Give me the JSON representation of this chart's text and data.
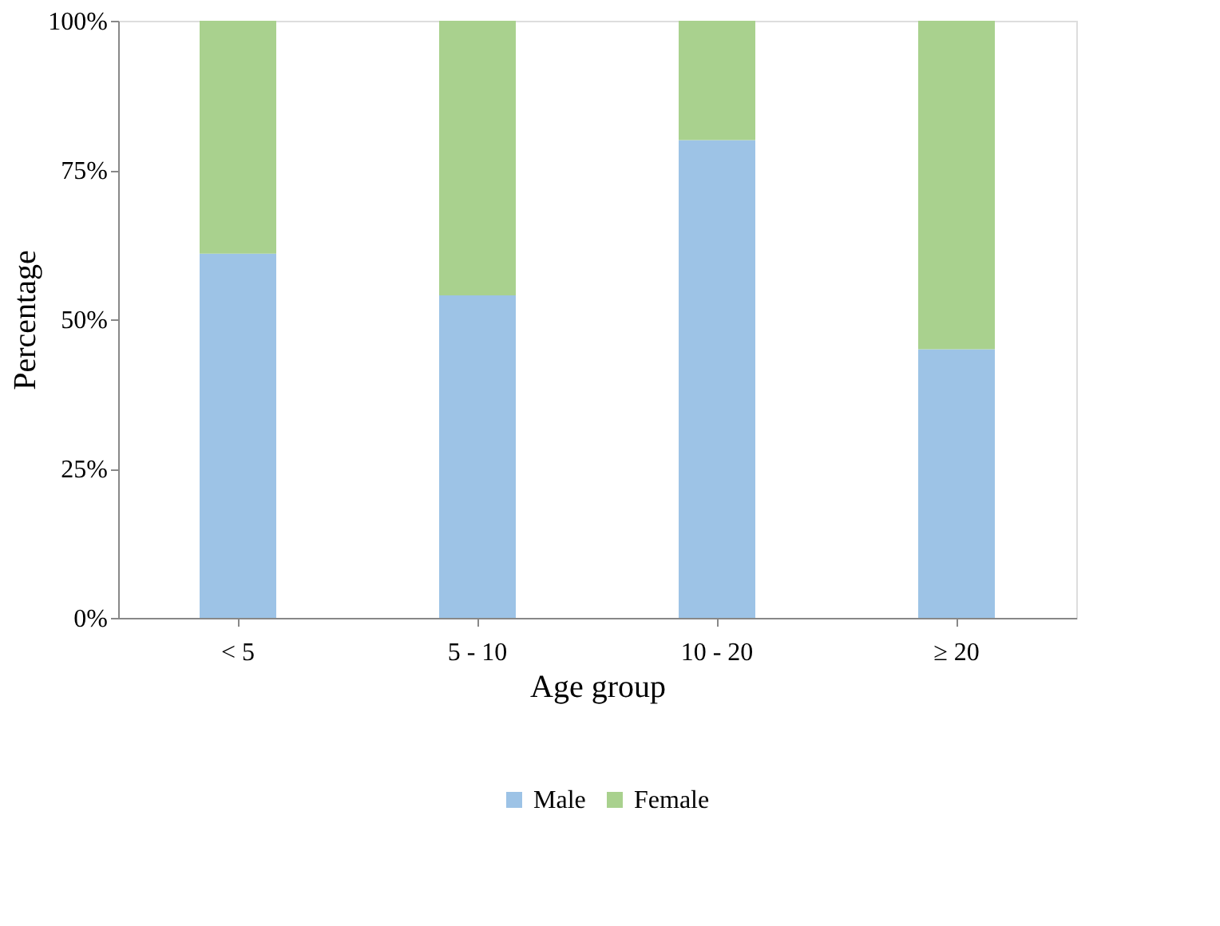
{
  "chart_data": {
    "type": "bar",
    "stacked": true,
    "xlabel": "Age group",
    "ylabel": "Percentage",
    "categories": [
      "< 5",
      "5 - 10",
      "10 - 20",
      "≥ 20"
    ],
    "series": [
      {
        "name": "Male",
        "color": "#9dc3e6",
        "values": [
          61,
          54,
          80,
          45
        ]
      },
      {
        "name": "Female",
        "color": "#a9d18e",
        "values": [
          39,
          46,
          20,
          55
        ]
      }
    ],
    "ylim": [
      0,
      100
    ],
    "yticks": [
      {
        "value": 0,
        "label": "0%"
      },
      {
        "value": 25,
        "label": "25%"
      },
      {
        "value": 50,
        "label": "50%"
      },
      {
        "value": 75,
        "label": "75%"
      },
      {
        "value": 100,
        "label": "100%"
      }
    ],
    "grid": false,
    "legend": "bottom"
  }
}
